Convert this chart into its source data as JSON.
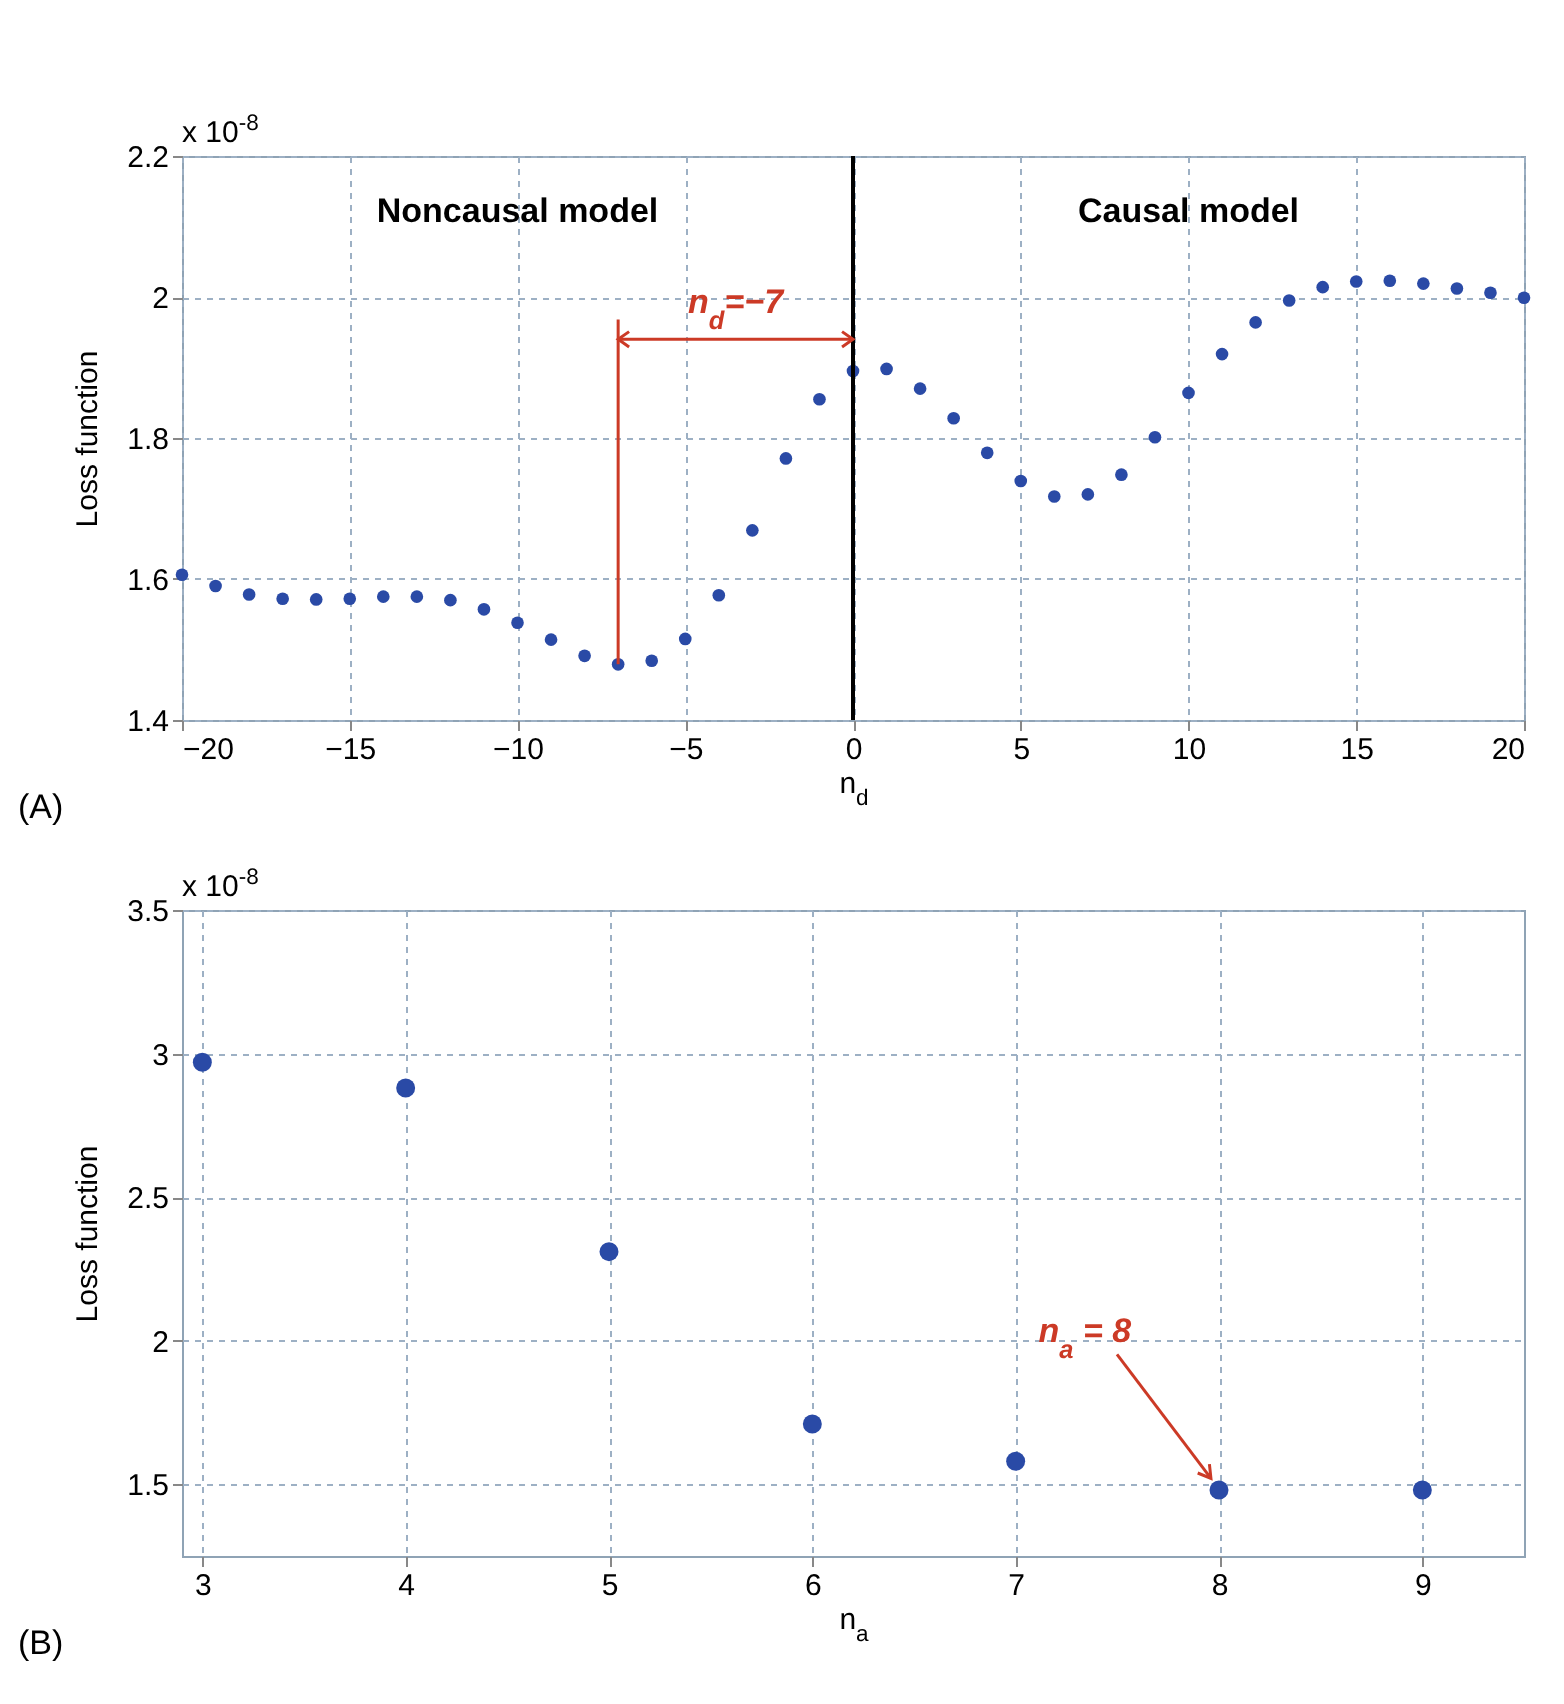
{
  "chart_data": [
    {
      "type": "scatter",
      "xlabel": "n$_{d}$",
      "ylabel": "Loss function",
      "marker": "circle",
      "grid": true,
      "x": [
        -20,
        -19,
        -18,
        -17,
        -16,
        -15,
        -14,
        -13,
        -12,
        -11,
        -10,
        -9,
        -8,
        -7,
        -6,
        -5,
        -4,
        -3,
        -2,
        -1,
        0,
        1,
        2,
        3,
        4,
        5,
        6,
        7,
        8,
        9,
        10,
        11,
        12,
        13,
        14,
        15,
        16,
        17,
        18,
        19,
        20
      ],
      "series": [
        {
          "color": "#2a4aa6",
          "values": [
            1.606,
            1.59,
            1.578,
            1.572,
            1.571,
            1.572,
            1.575,
            1.575,
            1.57,
            1.557,
            1.538,
            1.514,
            1.491,
            1.479,
            1.484,
            1.515,
            1.577,
            1.669,
            1.771,
            1.855,
            1.895,
            1.898,
            1.87,
            1.828,
            1.779,
            1.739,
            1.717,
            1.72,
            1.748,
            1.801,
            1.864,
            1.919,
            1.964,
            1.995,
            2.014,
            2.022,
            2.023,
            2.019,
            2.012,
            2.006,
            1.999
          ]
        }
      ],
      "xlim": [
        -20,
        20
      ],
      "xticks": [
        -20,
        -15,
        -10,
        -5,
        0,
        5,
        10,
        15,
        20
      ],
      "ylim": [
        1.4,
        2.2
      ],
      "yticks": [
        1.4,
        1.6,
        1.8,
        2,
        2.2
      ],
      "ref_lines": [
        {
          "axis": "x",
          "value": 0,
          "color": "#000000"
        },
        {
          "axis": "x",
          "value": -7,
          "label": "n$_{d}$=−7",
          "color": "#cc3a26"
        }
      ],
      "annotations": [
        "x 10$^{-8}$",
        "Noncausal model",
        "Causal model",
        "(A)"
      ]
    },
    {
      "type": "scatter",
      "xlabel": "n$_{a}$",
      "ylabel": "Loss function",
      "marker": "circle",
      "grid": true,
      "x": [
        3,
        4,
        5,
        6,
        7,
        8,
        9
      ],
      "series": [
        {
          "color": "#2a4aa6",
          "values": [
            2.97,
            2.88,
            2.31,
            1.71,
            1.58,
            1.48,
            1.48
          ]
        }
      ],
      "xlim": [
        2.9,
        9.5
      ],
      "xticks": [
        3,
        4,
        5,
        6,
        7,
        8,
        9
      ],
      "ylim": [
        1.25,
        3.5
      ],
      "yticks": [
        1.5,
        2,
        2.5,
        3,
        3.5
      ],
      "annotations": [
        "x 10$^{-8}$",
        {
          "text": "n$_{a}$ = 8",
          "x": 8,
          "y": 1.48
        },
        "(B)"
      ]
    }
  ]
}
